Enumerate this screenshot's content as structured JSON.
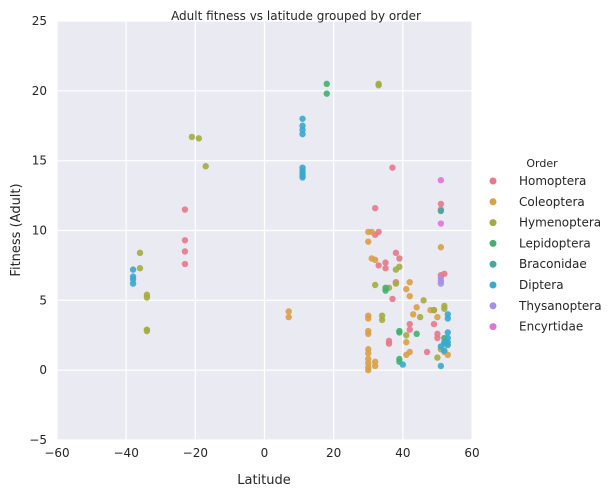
{
  "chart_data": {
    "type": "scatter",
    "title": "Adult fitness vs latitude grouped by order",
    "xlabel": "Latitude",
    "ylabel": "Fitness (Adult)",
    "xlim": [
      -60,
      60
    ],
    "ylim": [
      -5,
      25
    ],
    "xticks": [
      "−60",
      "−40",
      "−20",
      "0",
      "20",
      "40",
      "60"
    ],
    "yticks": [
      "−5",
      "0",
      "5",
      "10",
      "15",
      "20",
      "25"
    ],
    "grid": true,
    "legend": {
      "title": "Order",
      "position": "right"
    },
    "series": [
      {
        "name": "Homoptera",
        "color": "#e8788a",
        "points": [
          [
            -23,
            11.5
          ],
          [
            -23,
            9.3
          ],
          [
            -23,
            8.5
          ],
          [
            -23,
            7.6
          ],
          [
            32,
            11.6
          ],
          [
            33,
            9.9
          ],
          [
            32,
            9.7
          ],
          [
            33,
            7.5
          ],
          [
            35,
            7.7
          ],
          [
            35,
            7.3
          ],
          [
            37,
            14.5
          ],
          [
            38,
            8.4
          ],
          [
            39,
            8.0
          ],
          [
            37,
            5.1
          ],
          [
            38,
            6.3
          ],
          [
            36,
            2.1
          ],
          [
            36,
            1.9
          ],
          [
            42,
            3.3
          ],
          [
            42,
            2.9
          ],
          [
            47,
            1.3
          ],
          [
            49,
            3.3
          ],
          [
            50,
            2.3
          ],
          [
            51,
            11.9
          ],
          [
            51,
            11.5
          ],
          [
            51,
            6.8
          ],
          [
            52,
            6.9
          ],
          [
            49,
            4.3
          ],
          [
            50,
            2.6
          ]
        ]
      },
      {
        "name": "Coleoptera",
        "color": "#d9a046",
        "points": [
          [
            7,
            4.2
          ],
          [
            7,
            3.8
          ],
          [
            30,
            9.9
          ],
          [
            30,
            9.2
          ],
          [
            31,
            9.9
          ],
          [
            31,
            8.0
          ],
          [
            32,
            7.9
          ],
          [
            30,
            3.9
          ],
          [
            30,
            3.7
          ],
          [
            30,
            2.8
          ],
          [
            30,
            2.6
          ],
          [
            30,
            1.5
          ],
          [
            30,
            1.2
          ],
          [
            30,
            0.8
          ],
          [
            30,
            0.5
          ],
          [
            30,
            0.2
          ],
          [
            30,
            0.0
          ],
          [
            32,
            0.3
          ],
          [
            32,
            0.6
          ],
          [
            41,
            2.0
          ],
          [
            41,
            1.1
          ],
          [
            42,
            1.3
          ],
          [
            42,
            5.3
          ],
          [
            43,
            4.0
          ],
          [
            44,
            4.5
          ],
          [
            48,
            4.3
          ],
          [
            51,
            8.8
          ],
          [
            52,
            1.3
          ],
          [
            53,
            1.1
          ],
          [
            50,
            3.8
          ],
          [
            41,
            5.8
          ],
          [
            42,
            6.3
          ]
        ]
      },
      {
        "name": "Hymenoptera",
        "color": "#a4ac3e",
        "points": [
          [
            -36,
            8.4
          ],
          [
            -36,
            7.3
          ],
          [
            -34,
            5.4
          ],
          [
            -34,
            5.2
          ],
          [
            -34,
            2.9
          ],
          [
            -34,
            2.8
          ],
          [
            -21,
            16.7
          ],
          [
            -19,
            16.6
          ],
          [
            -17,
            14.6
          ],
          [
            33,
            20.5
          ],
          [
            33,
            20.4
          ],
          [
            32,
            6.1
          ],
          [
            34,
            3.9
          ],
          [
            34,
            3.6
          ],
          [
            36,
            5.9
          ],
          [
            38,
            7.2
          ],
          [
            39,
            7.4
          ],
          [
            38,
            6.2
          ],
          [
            41,
            2.5
          ],
          [
            45,
            3.8
          ],
          [
            46,
            5.0
          ],
          [
            49,
            4.3
          ],
          [
            52,
            4.6
          ],
          [
            52,
            4.4
          ],
          [
            51,
            1.5
          ],
          [
            50,
            0.9
          ]
        ]
      },
      {
        "name": "Lepidoptera",
        "color": "#40b26b",
        "points": [
          [
            18,
            20.5
          ],
          [
            18,
            19.8
          ],
          [
            35,
            5.9
          ],
          [
            35,
            5.7
          ],
          [
            39,
            2.8
          ],
          [
            39,
            2.7
          ],
          [
            39,
            0.8
          ],
          [
            39,
            0.6
          ],
          [
            44,
            2.6
          ],
          [
            52,
            2.3
          ]
        ]
      },
      {
        "name": "Braconidae",
        "color": "#3fa8a2",
        "points": [
          [
            51,
            11.4
          ],
          [
            52,
            2.0
          ],
          [
            53,
            1.8
          ]
        ]
      },
      {
        "name": "Diptera",
        "color": "#3aa9d1",
        "points": [
          [
            -38,
            7.2
          ],
          [
            -38,
            6.7
          ],
          [
            -38,
            6.5
          ],
          [
            -38,
            6.2
          ],
          [
            11,
            18.0
          ],
          [
            11,
            17.5
          ],
          [
            11,
            17.2
          ],
          [
            11,
            16.9
          ],
          [
            11,
            14.5
          ],
          [
            11,
            14.3
          ],
          [
            11,
            14.1
          ],
          [
            11,
            13.9
          ],
          [
            11,
            13.8
          ],
          [
            40,
            0.4
          ],
          [
            51,
            0.3
          ],
          [
            51,
            1.7
          ],
          [
            52,
            1.4
          ],
          [
            53,
            2.0
          ],
          [
            53,
            2.3
          ],
          [
            53,
            2.7
          ],
          [
            53,
            3.7
          ],
          [
            53,
            4.0
          ],
          [
            52,
            1.9
          ]
        ]
      },
      {
        "name": "Thysanoptera",
        "color": "#a98ee8",
        "points": [
          [
            51,
            6.6
          ],
          [
            51,
            6.4
          ],
          [
            51,
            6.2
          ]
        ]
      },
      {
        "name": "Encyrtidae",
        "color": "#e572da",
        "points": [
          [
            51,
            13.6
          ],
          [
            51,
            10.5
          ]
        ]
      }
    ]
  }
}
